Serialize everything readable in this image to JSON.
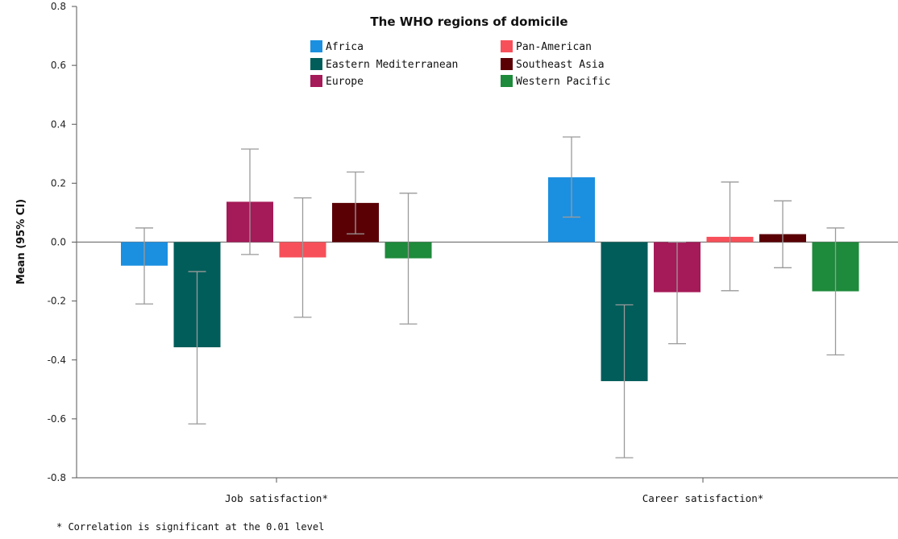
{
  "chart_data": {
    "type": "bar",
    "title": "",
    "xlabel": "",
    "ylabel": "Mean (95% CI)",
    "ylim": [
      -0.8,
      0.8
    ],
    "yticks": [
      "-0.8",
      "-0.6",
      "-0.4",
      "-0.2",
      "0.0",
      "0.2",
      "0.4",
      "0.6",
      "0.8"
    ],
    "categories": [
      "Job satisfaction*",
      "Career satisfaction*"
    ],
    "legend": {
      "title": "The WHO regions of domicile",
      "placement": "top-center",
      "columns": 2
    },
    "grid": false,
    "error_bars": "95% CI",
    "series": [
      {
        "name": "Africa",
        "color": "#1b8fe0",
        "values": [
          -0.08,
          0.22
        ],
        "ci_low": [
          -0.21,
          0.085
        ],
        "ci_high": [
          0.048,
          0.357
        ]
      },
      {
        "name": "Eastern Mediterranean",
        "color": "#005d5a",
        "values": [
          -0.357,
          -0.472
        ],
        "ci_low": [
          -0.617,
          -0.732
        ],
        "ci_high": [
          -0.1,
          -0.213
        ]
      },
      {
        "name": "Europe",
        "color": "#a51a58",
        "values": [
          0.137,
          -0.17
        ],
        "ci_low": [
          -0.042,
          -0.345
        ],
        "ci_high": [
          0.316,
          0.0
        ]
      },
      {
        "name": "Pan-American",
        "color": "#f7505a",
        "values": [
          -0.052,
          0.018
        ],
        "ci_low": [
          -0.255,
          -0.165
        ],
        "ci_high": [
          0.15,
          0.204
        ]
      },
      {
        "name": "Southeast Asia",
        "color": "#5a0005",
        "values": [
          0.133,
          0.027
        ],
        "ci_low": [
          0.028,
          -0.087
        ],
        "ci_high": [
          0.238,
          0.14
        ]
      },
      {
        "name": "Western Pacific",
        "color": "#1e8a3b",
        "values": [
          -0.055,
          -0.167
        ],
        "ci_low": [
          -0.278,
          -0.383
        ],
        "ci_high": [
          0.166,
          0.048
        ]
      }
    ],
    "footnote": "* Correlation is significant at the 0.01 level"
  }
}
